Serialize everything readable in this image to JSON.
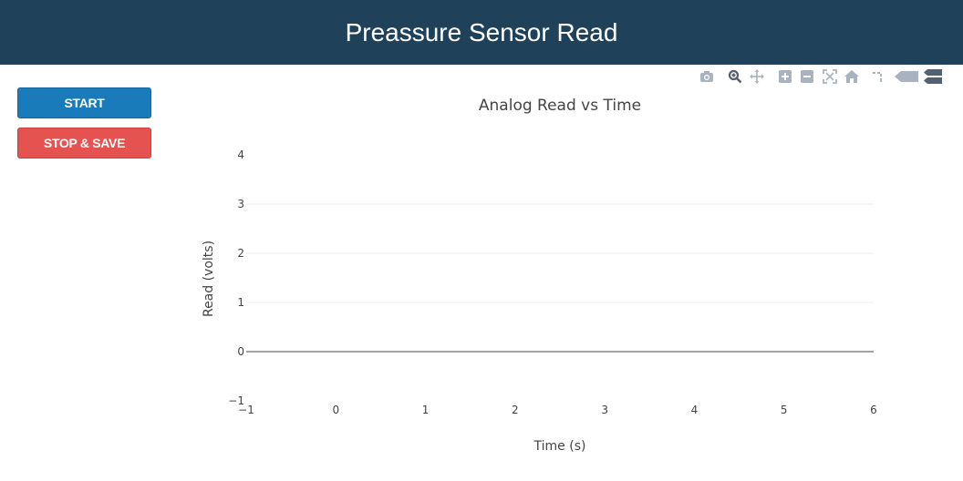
{
  "header": {
    "title": "Preassure Sensor Read"
  },
  "controls": {
    "start_label": "START",
    "stop_label": "STOP & SAVE"
  },
  "modebar": {
    "icons": [
      "camera-icon",
      "zoom-icon",
      "pan-icon",
      "zoom-in-icon",
      "zoom-out-icon",
      "autoscale-icon",
      "reset-axes-icon",
      "spike-lines-icon",
      "hover-closest-icon",
      "hover-compare-icon"
    ]
  },
  "chart_data": {
    "type": "line",
    "title": "Analog Read vs Time",
    "xlabel": "Time (s)",
    "ylabel": "Read (volts)",
    "xlim": [
      -1,
      6
    ],
    "ylim": [
      -1,
      4
    ],
    "x_ticks": [
      "−1",
      "0",
      "1",
      "2",
      "3",
      "4",
      "5",
      "6"
    ],
    "y_ticks": [
      "−1",
      "0",
      "1",
      "2",
      "3",
      "4"
    ],
    "series": [],
    "grid": true,
    "colors": {
      "grid": "#eeeeee",
      "zeroline": "#444444",
      "text": "#444444"
    }
  }
}
